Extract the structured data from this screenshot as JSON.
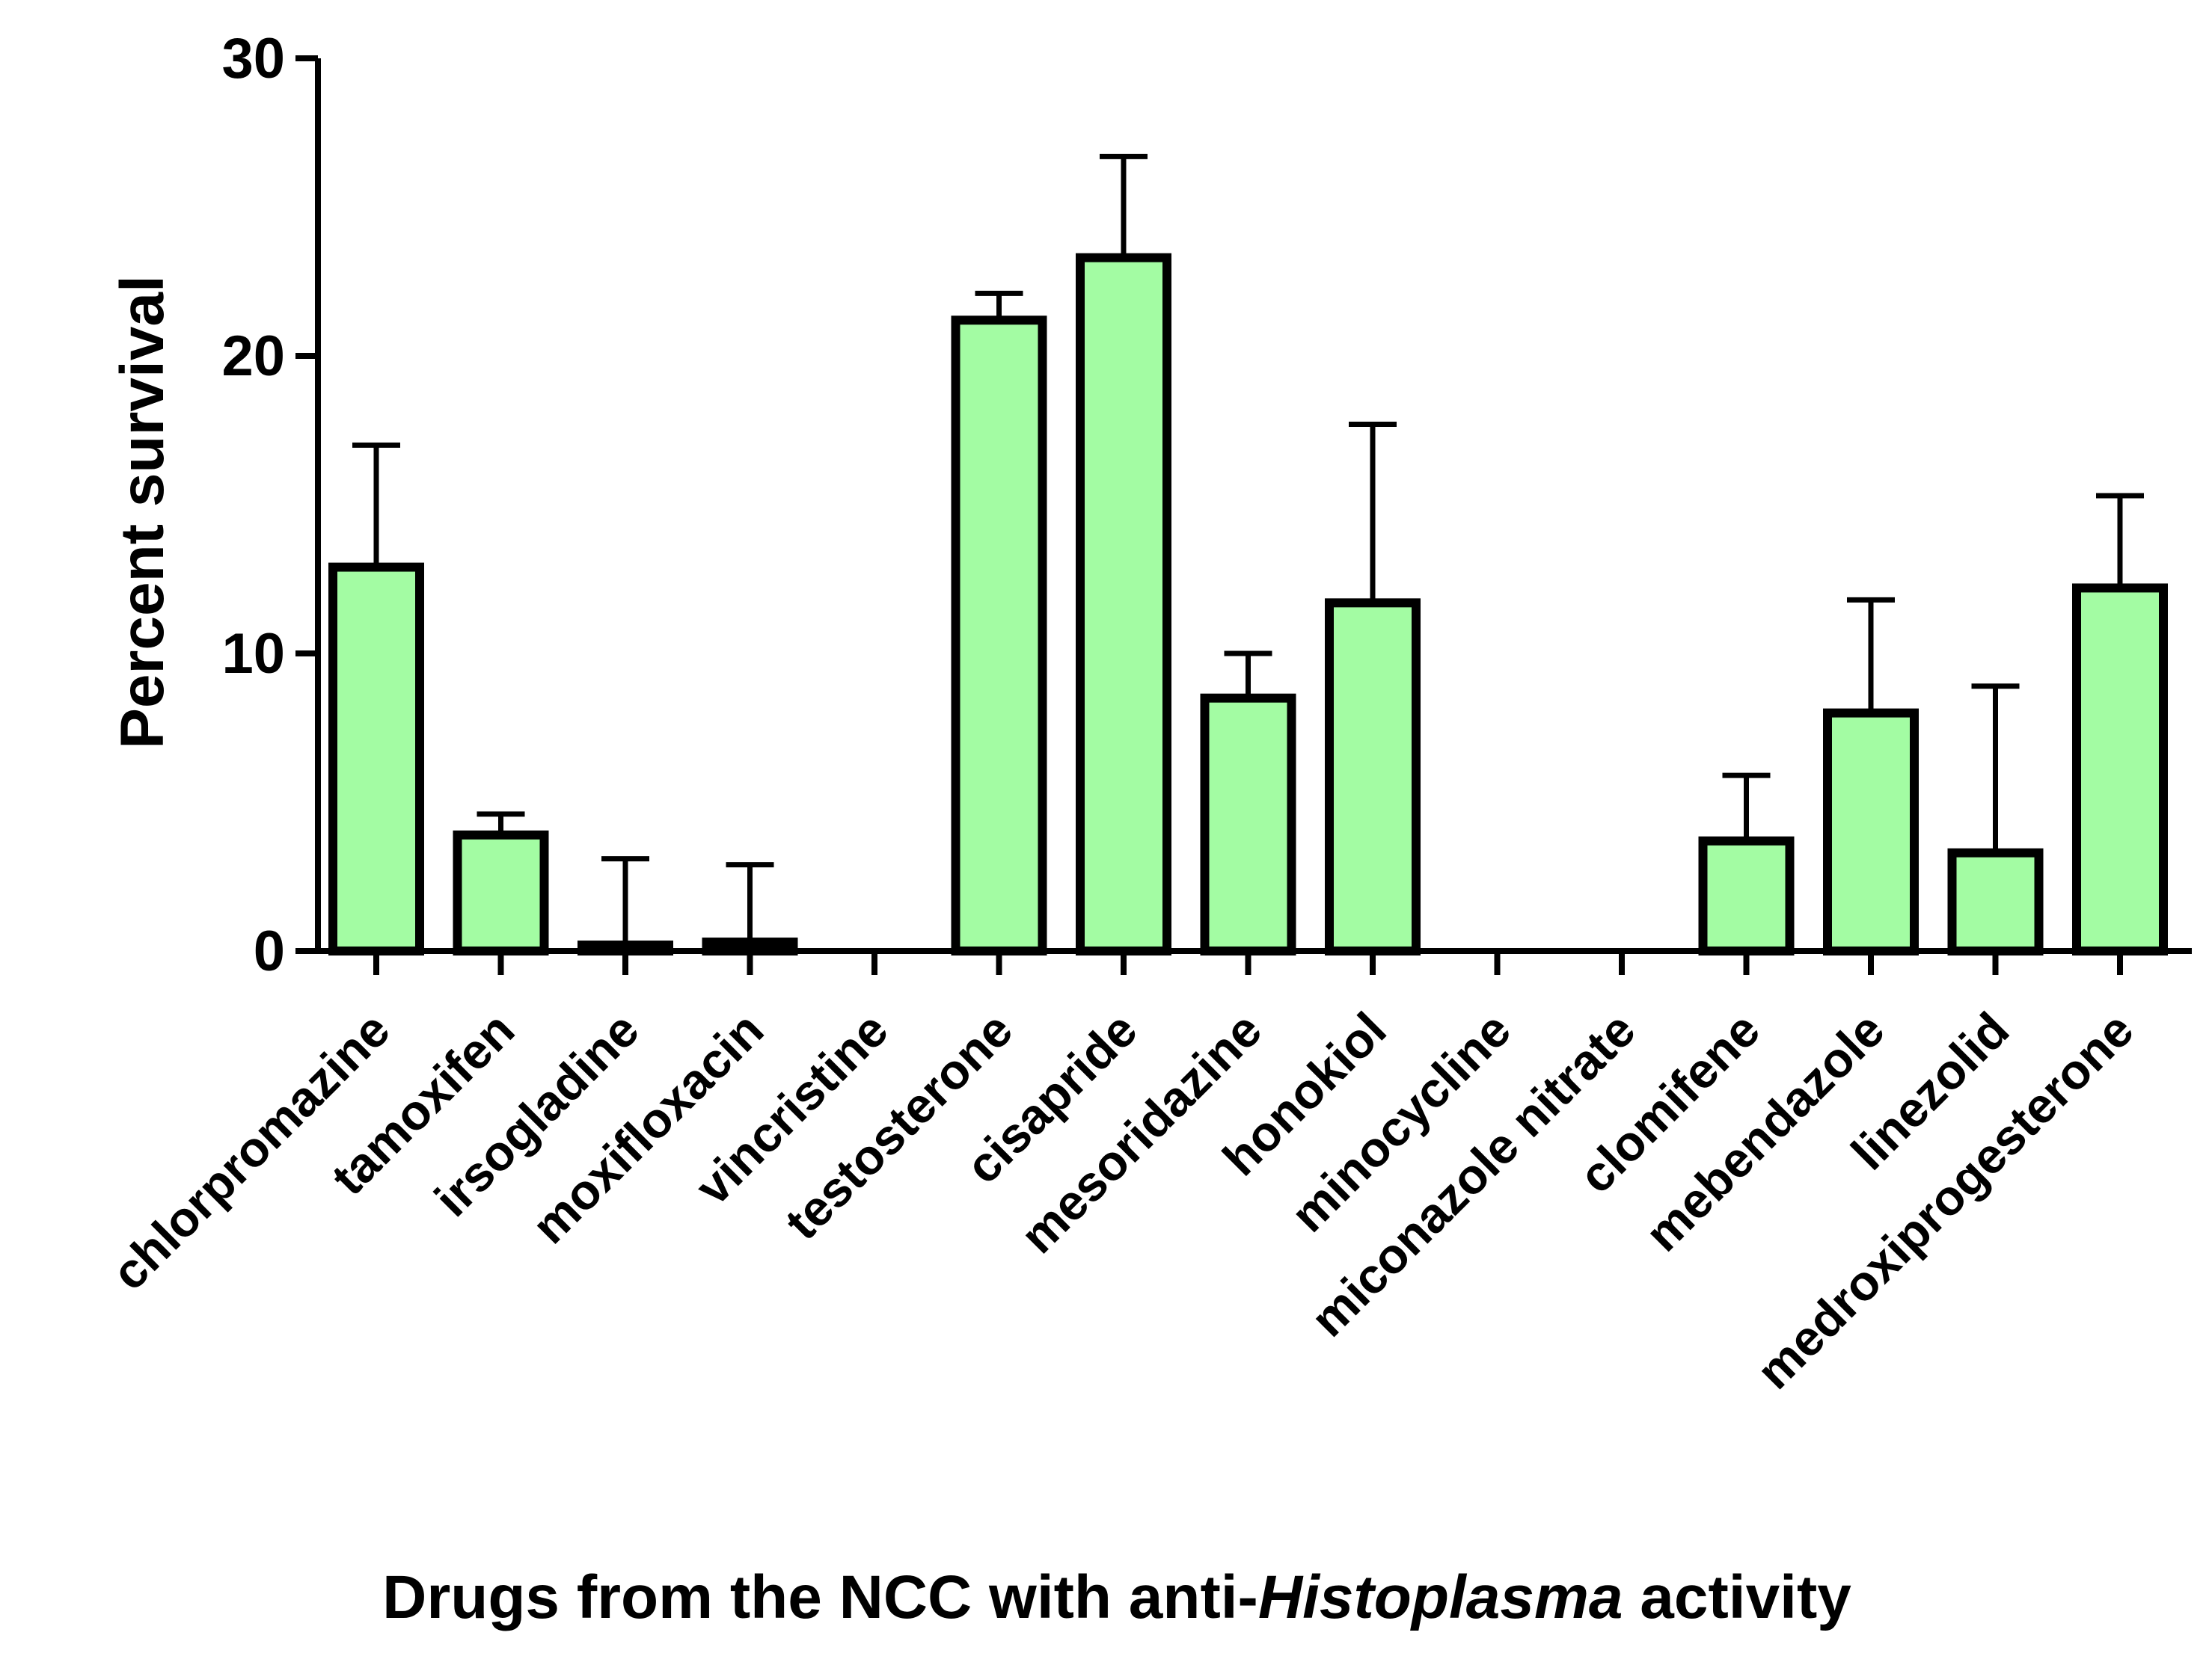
{
  "chart_data": {
    "type": "bar",
    "title": "",
    "xlabel_parts": [
      {
        "text": "Drugs from the NCC with anti-",
        "italic": false
      },
      {
        "text": "Histoplasma",
        "italic": true
      },
      {
        "text": " activity",
        "italic": false
      }
    ],
    "ylabel": "Percent survival",
    "ylim": [
      0,
      30
    ],
    "yticks": [
      0,
      10,
      20,
      30
    ],
    "grid": false,
    "bar_color": "#a3fca3",
    "categories": [
      "chlorpromazine",
      "tamoxifen",
      "irsogladine",
      "moxifloxacin",
      "vincristine",
      "testosterone",
      "cisapride",
      "mesoridazine",
      "honokiol",
      "minocycline",
      "miconazole nitrate",
      "clomifene",
      "mebendazole",
      "linezolid",
      "medroxiprogesterone"
    ],
    "values": [
      12.9,
      3.9,
      0.2,
      0.3,
      0,
      21.2,
      23.3,
      8.5,
      11.7,
      0,
      0,
      3.7,
      8.0,
      3.3,
      12.2
    ],
    "error_upper": [
      17.0,
      4.6,
      3.1,
      2.9,
      0,
      22.1,
      26.7,
      10.0,
      17.7,
      0,
      0,
      5.9,
      11.8,
      8.9,
      15.3
    ]
  }
}
